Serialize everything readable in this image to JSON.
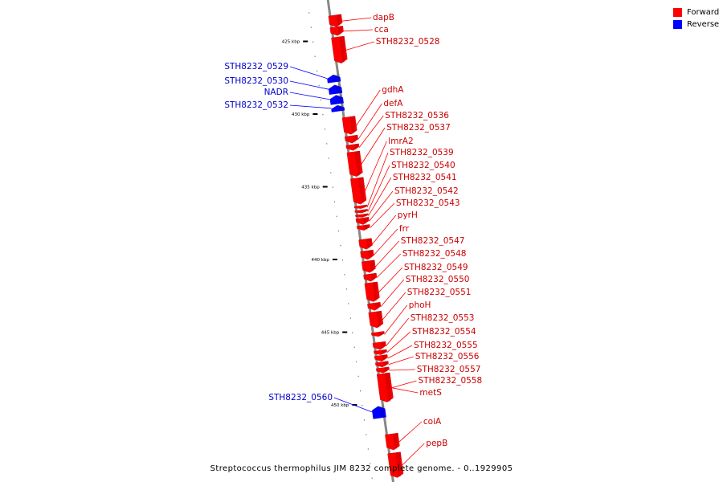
{
  "caption": "Streptococcus thermophilus JIM 8232 complete genome. - 0..1929905",
  "legend": [
    {
      "label": "Forward",
      "color": "#ff0000"
    },
    {
      "label": "Reverse",
      "color": "#0000ff"
    }
  ],
  "axis": {
    "ticks": [
      {
        "kbp": 425,
        "label": "425 kbp"
      },
      {
        "kbp": 430,
        "label": "430 kbp"
      },
      {
        "kbp": 435,
        "label": "435 kbp"
      },
      {
        "kbp": 440,
        "label": "440 kbp"
      },
      {
        "kbp": 445,
        "label": "445 kbp"
      },
      {
        "kbp": 450,
        "label": "450 kbp"
      }
    ]
  },
  "genes": [
    {
      "name": "dapB",
      "strand": "forward",
      "start": 423.2,
      "end": 424.0
    },
    {
      "name": "cca",
      "strand": "forward",
      "start": 424.0,
      "end": 424.6
    },
    {
      "name": "STH8232_0528",
      "strand": "forward",
      "start": 424.7,
      "end": 426.5
    },
    {
      "name": "STH8232_0529",
      "strand": "reverse",
      "start": 427.3,
      "end": 427.8
    },
    {
      "name": "STH8232_0530",
      "strand": "reverse",
      "start": 428.0,
      "end": 428.6
    },
    {
      "name": "NADR",
      "strand": "reverse",
      "start": 428.7,
      "end": 429.3
    },
    {
      "name": "STH8232_0532",
      "strand": "reverse",
      "start": 429.4,
      "end": 429.8
    },
    {
      "name": "gdhA",
      "strand": "forward",
      "start": 430.2,
      "end": 431.4
    },
    {
      "name": "defA",
      "strand": "forward",
      "start": 431.5,
      "end": 432.0
    },
    {
      "name": "STH8232_0536",
      "strand": "forward",
      "start": 432.1,
      "end": 432.5
    },
    {
      "name": "STH8232_0537",
      "strand": "forward",
      "start": 432.6,
      "end": 434.3
    },
    {
      "name": "lmrA2",
      "strand": "forward",
      "start": 434.4,
      "end": 436.2
    },
    {
      "name": "STH8232_0539",
      "strand": "forward",
      "start": 436.3,
      "end": 436.5
    },
    {
      "name": "STH8232_0540",
      "strand": "forward",
      "start": 436.6,
      "end": 436.8
    },
    {
      "name": "STH8232_0541",
      "strand": "forward",
      "start": 436.9,
      "end": 437.1
    },
    {
      "name": "STH8232_0542",
      "strand": "forward",
      "start": 437.15,
      "end": 437.6
    },
    {
      "name": "STH8232_0543",
      "strand": "forward",
      "start": 437.65,
      "end": 438.0
    },
    {
      "name": "pyrH",
      "strand": "forward",
      "start": 438.6,
      "end": 439.3
    },
    {
      "name": "frr",
      "strand": "forward",
      "start": 439.4,
      "end": 440.0
    },
    {
      "name": "STH8232_0547",
      "strand": "forward",
      "start": 440.1,
      "end": 440.9
    },
    {
      "name": "STH8232_0548",
      "strand": "forward",
      "start": 441.0,
      "end": 441.5
    },
    {
      "name": "STH8232_0549",
      "strand": "forward",
      "start": 441.6,
      "end": 442.9
    },
    {
      "name": "STH8232_0550",
      "strand": "forward",
      "start": 443.0,
      "end": 443.5
    },
    {
      "name": "STH8232_0551",
      "strand": "forward",
      "start": 443.6,
      "end": 444.7
    },
    {
      "name": "phoH",
      "strand": "forward",
      "start": 445.0,
      "end": 445.3
    },
    {
      "name": "STH8232_0553",
      "strand": "forward",
      "start": 445.7,
      "end": 446.2
    },
    {
      "name": "STH8232_0554",
      "strand": "forward",
      "start": 446.25,
      "end": 446.55
    },
    {
      "name": "STH8232_0555",
      "strand": "forward",
      "start": 446.6,
      "end": 447.0
    },
    {
      "name": "STH8232_0556",
      "strand": "forward",
      "start": 447.05,
      "end": 447.4
    },
    {
      "name": "STH8232_0557",
      "strand": "forward",
      "start": 447.45,
      "end": 447.8
    },
    {
      "name": "STH8232_0558",
      "strand": "forward",
      "start": 447.85,
      "end": 449.8
    },
    {
      "name": "metS",
      "strand": "forward",
      "start": 447.85,
      "end": 449.8
    },
    {
      "name": "STH8232_0560",
      "strand": "reverse",
      "start": 450.1,
      "end": 450.9
    },
    {
      "name": "coiA",
      "strand": "forward",
      "start": 452.0,
      "end": 453.1
    },
    {
      "name": "pepB",
      "strand": "forward",
      "start": 453.3,
      "end": 455.0
    }
  ]
}
